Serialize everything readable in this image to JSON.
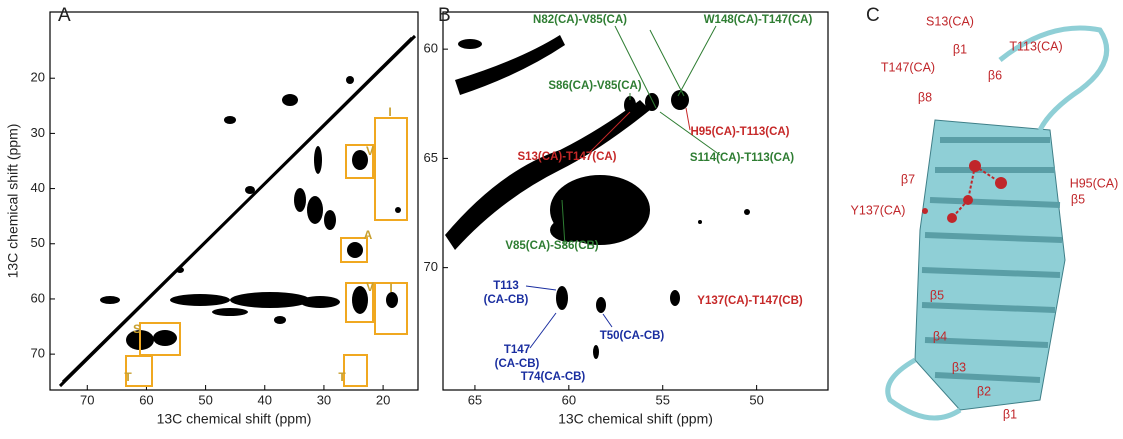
{
  "panel_a": {
    "label": "A",
    "xlabel": "13C chemical shift (ppm)",
    "ylabel": "13C chemical shift (ppm)",
    "xlim": [
      76.3,
      14.1
    ],
    "ylim": [
      8,
      76.5
    ],
    "xticks": [
      70,
      60,
      50,
      40,
      30,
      20
    ],
    "yticks": [
      20,
      30,
      40,
      50,
      60,
      70
    ],
    "box_color": "#f0a820",
    "boxes": [
      "I",
      "V",
      "A",
      "V",
      "I",
      "S",
      "T",
      "T"
    ]
  },
  "panel_b": {
    "label": "B",
    "xlabel": "13C chemical shift (ppm)",
    "xlim": [
      66.7,
      46.2
    ],
    "ylim": [
      58.3,
      75.6
    ],
    "xticks": [
      65,
      60,
      55,
      50
    ],
    "yticks": [
      60,
      65,
      70
    ],
    "groups": [
      {
        "color": "#2e7d32",
        "labels": [
          [
            "N82(CA)-V85(CA)"
          ],
          [
            "W148(CA)-T147(CA)"
          ],
          [
            "S86(CA)-V85(CA)"
          ],
          [
            "S114(CA)-T113(CA)"
          ],
          [
            "V85(CA)-S86(CB)"
          ]
        ]
      },
      {
        "color": "#c62828",
        "labels": [
          [
            "H95(CA)-T113(CA)"
          ],
          [
            "S13(CA)-T147(CA)"
          ],
          [
            "Y137(CA)-T147(CB)"
          ]
        ]
      },
      {
        "color": "#1a2ea0",
        "labels": [
          [
            "T113",
            "(CA-CB)"
          ],
          [
            "T147",
            "(CA-CB)"
          ],
          [
            "T50(CA-CB)"
          ],
          [
            "T74(CA-CB)"
          ]
        ]
      }
    ]
  },
  "panel_c": {
    "label": "C",
    "labels": [
      "S13(CA)",
      "β1",
      "T113(CA)",
      "T147(CA)",
      "β6",
      "β8",
      "H95(CA)",
      "β5",
      "β7",
      "Y137(CA)",
      "β5",
      "β4",
      "β3",
      "β2",
      "β1"
    ]
  }
}
